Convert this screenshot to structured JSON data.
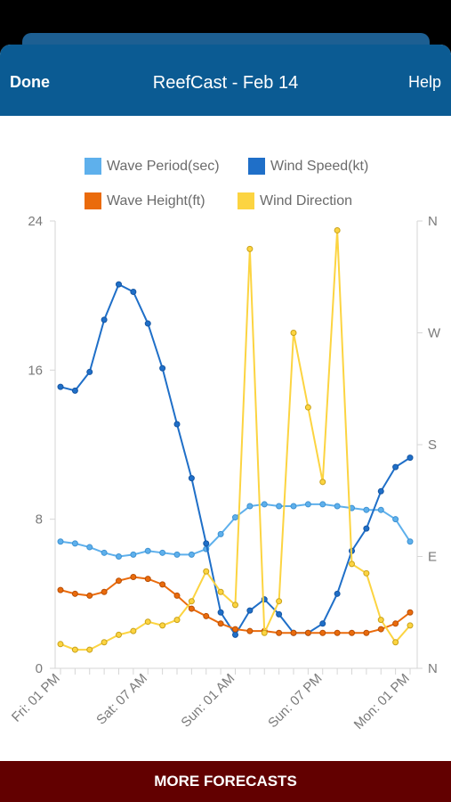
{
  "nav": {
    "done_label": "Done",
    "title": "ReefCast - Feb 14",
    "help_label": "Help"
  },
  "legend": [
    {
      "label": "Wave Period(sec)",
      "color": "#5eb0ec"
    },
    {
      "label": "Wind Speed(kt)",
      "color": "#1f6fc8"
    },
    {
      "label": "Wave Height(ft)",
      "color": "#ea6b0c"
    },
    {
      "label": "Wind Direction",
      "color": "#fcd441"
    }
  ],
  "footer": {
    "label": "MORE FORECASTS"
  },
  "chart_data": {
    "type": "line",
    "x": [
      "Fri: 01 PM",
      "Fri: 04 PM",
      "Fri: 07 PM",
      "Fri: 10 PM",
      "Sat: 01 AM",
      "Sat: 04 AM",
      "Sat: 07 AM",
      "Sat: 10 AM",
      "Sat: 01 PM",
      "Sat: 04 PM",
      "Sat: 07 PM",
      "Sat: 10 PM",
      "Sun: 01 AM",
      "Sun: 04 AM",
      "Sun: 07 AM",
      "Sun: 10 AM",
      "Sun: 01 PM",
      "Sun: 04 PM",
      "Sun: 07 PM",
      "Sun: 10 PM",
      "Mon: 01 AM",
      "Mon: 04 AM",
      "Mon: 07 AM",
      "Mon: 10 AM",
      "Mon: 01 PM"
    ],
    "x_tick_labels": [
      "Fri: 01 PM",
      "Sat: 07 AM",
      "Sun: 01 AM",
      "Sun: 07 PM",
      "Mon: 01 PM"
    ],
    "x_tick_positions": [
      0,
      6,
      12,
      18,
      24
    ],
    "y_left": {
      "ticks": [
        0,
        8,
        16,
        24
      ],
      "ylim": [
        0,
        24
      ]
    },
    "y_right": {
      "ticks": [
        "N",
        "E",
        "S",
        "W",
        "N"
      ]
    },
    "grid": false,
    "legend_position": "top",
    "series": [
      {
        "name": "Wave Period(sec)",
        "color": "#5eb0ec",
        "axis": "left",
        "values": [
          6.8,
          6.7,
          6.5,
          6.2,
          6.0,
          6.1,
          6.3,
          6.2,
          6.1,
          6.1,
          6.4,
          7.2,
          8.1,
          8.7,
          8.8,
          8.7,
          8.7,
          8.8,
          8.8,
          8.7,
          8.6,
          8.5,
          8.5,
          8.0,
          6.8
        ]
      },
      {
        "name": "Wind Speed(kt)",
        "color": "#1f6fc8",
        "axis": "left",
        "values": [
          15.1,
          14.9,
          15.9,
          18.7,
          20.6,
          20.2,
          18.5,
          16.1,
          13.1,
          10.2,
          6.7,
          3.0,
          1.8,
          3.1,
          3.7,
          2.9,
          1.9,
          1.9,
          2.4,
          4.0,
          6.3,
          7.5,
          9.5,
          10.8,
          11.3
        ]
      },
      {
        "name": "Wave Height(ft)",
        "color": "#ea6b0c",
        "axis": "left",
        "values": [
          4.2,
          4.0,
          3.9,
          4.1,
          4.7,
          4.9,
          4.8,
          4.5,
          3.9,
          3.2,
          2.8,
          2.4,
          2.1,
          2.0,
          2.0,
          1.9,
          1.9,
          1.9,
          1.9,
          1.9,
          1.9,
          1.9,
          2.1,
          2.4,
          3.0
        ]
      },
      {
        "name": "Wind Direction",
        "color": "#fcd441",
        "axis": "left",
        "values": [
          1.3,
          1.0,
          1.0,
          1.4,
          1.8,
          2.0,
          2.5,
          2.3,
          2.6,
          3.6,
          5.2,
          4.1,
          3.4,
          22.5,
          1.9,
          3.6,
          18.0,
          14.0,
          10.0,
          23.5,
          5.6,
          5.1,
          2.6,
          1.4,
          2.3
        ]
      }
    ]
  }
}
